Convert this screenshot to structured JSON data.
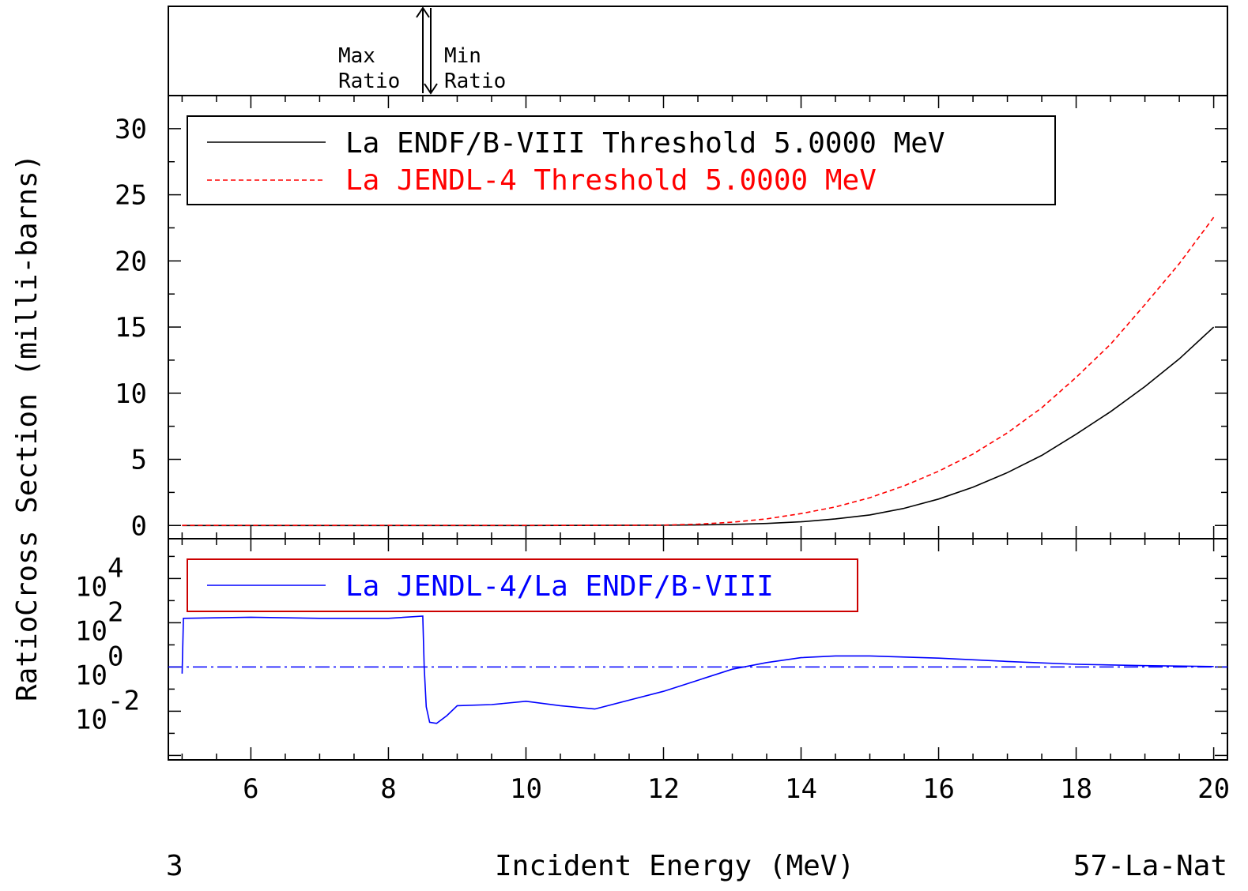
{
  "chart_data": [
    {
      "type": "line",
      "panel": "cross-section",
      "xlabel": "Incident Energy (MeV)",
      "ylabel": "Cross Section (milli-barns)",
      "xlim": [
        4.8,
        20.2
      ],
      "ylim": [
        -1,
        32.5
      ],
      "x_ticks": [
        6,
        8,
        10,
        12,
        14,
        16,
        18,
        20
      ],
      "y_ticks": [
        0,
        5,
        10,
        15,
        20,
        25,
        30
      ],
      "legend_position": "top-left",
      "series": [
        {
          "name": "La ENDF/B-VIII Threshold 5.0000 MeV",
          "color": "#000000",
          "style": "solid",
          "x": [
            5,
            8,
            10,
            12,
            12.5,
            13,
            13.5,
            14,
            14.5,
            15,
            15.5,
            16,
            16.5,
            17,
            17.5,
            18,
            18.5,
            19,
            19.5,
            20
          ],
          "y": [
            0,
            0,
            0,
            0.02,
            0.04,
            0.08,
            0.15,
            0.28,
            0.5,
            0.8,
            1.3,
            2.0,
            2.9,
            4.0,
            5.3,
            6.9,
            8.6,
            10.5,
            12.6,
            15.0
          ]
        },
        {
          "name": "La JENDL-4 Threshold 5.0000 MeV",
          "color": "#ff0000",
          "style": "dashed",
          "x": [
            5,
            8,
            10,
            11,
            12,
            12.5,
            13,
            13.5,
            14,
            14.5,
            15,
            15.5,
            16,
            16.5,
            17,
            17.5,
            18,
            18.5,
            19,
            19.5,
            20
          ],
          "y": [
            0.01,
            0.01,
            0.01,
            0.01,
            0.03,
            0.1,
            0.25,
            0.5,
            0.9,
            1.4,
            2.1,
            3.0,
            4.1,
            5.4,
            7.0,
            8.9,
            11.2,
            13.7,
            16.7,
            19.8,
            23.3
          ]
        }
      ]
    },
    {
      "type": "line",
      "panel": "ratio",
      "ylabel": "Ratio",
      "yscale": "log",
      "xlim": [
        4.8,
        20.2
      ],
      "ylim_log10": [
        -4.2,
        5.8
      ],
      "y_ticks_log10": [
        -2,
        0,
        2,
        4
      ],
      "legend_position": "top-left",
      "reference_line": 1,
      "series": [
        {
          "name": "La JENDL-4/La ENDF/B-VIII",
          "color": "#0000ff",
          "style": "solid",
          "x": [
            5.0,
            5.02,
            6.0,
            7.0,
            8.0,
            8.5,
            8.52,
            8.55,
            8.6,
            8.7,
            8.85,
            9.0,
            9.5,
            10.0,
            10.5,
            11.0,
            11.5,
            12.0,
            12.5,
            13.0,
            13.5,
            14.0,
            14.5,
            15.0,
            15.5,
            16.0,
            17.0,
            18.0,
            19.0,
            20.0
          ],
          "y_log10": [
            -0.3,
            2.2,
            2.25,
            2.2,
            2.2,
            2.3,
            0.0,
            -1.8,
            -2.5,
            -2.55,
            -2.2,
            -1.75,
            -1.7,
            -1.55,
            -1.75,
            -1.9,
            -1.5,
            -1.1,
            -0.6,
            -0.1,
            0.2,
            0.42,
            0.5,
            0.5,
            0.45,
            0.4,
            0.25,
            0.12,
            0.06,
            0.02
          ]
        }
      ]
    }
  ],
  "top_panel": {
    "max_label_1": "Max",
    "max_label_2": "Ratio",
    "min_label_1": "Min",
    "min_label_2": "Ratio"
  },
  "y_axis_label_left": "Ratio",
  "y_axis_label_right": "Cross Section (milli-barns)",
  "ratio_tick_labels": [
    {
      "base": "10",
      "exp": "4"
    },
    {
      "base": "10",
      "exp": "2"
    },
    {
      "base": "10",
      "exp": "0"
    },
    {
      "base": "10",
      "exp": "-2"
    }
  ],
  "footer": {
    "left": "3",
    "center": "Incident Energy (MeV)",
    "right": "57-La-Nat"
  },
  "colors": {
    "endf": "#000000",
    "jendl": "#ff0000",
    "ratio": "#0000ff",
    "ratio_legend_border": "#cc0000"
  }
}
